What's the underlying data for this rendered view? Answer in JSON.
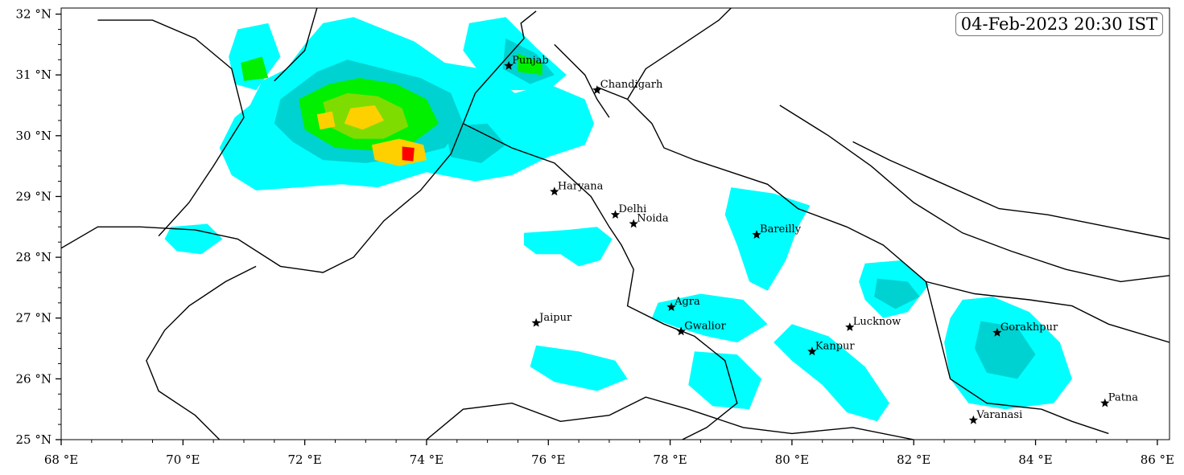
{
  "timestamp": "04-Feb-2023 20:30 IST",
  "colors": {
    "light": "#00ffff",
    "medium": "#00d2d2",
    "heavy": "#00f000",
    "mid": "#7fdc00",
    "very_heavy": "#ffd000",
    "extreme": "#ff0000",
    "border": "#000000"
  },
  "axes": {
    "x_ticks": [
      {
        "value": 68,
        "label": "68 °E"
      },
      {
        "value": 70,
        "label": "70 °E"
      },
      {
        "value": 72,
        "label": "72 °E"
      },
      {
        "value": 74,
        "label": "74 °E"
      },
      {
        "value": 76,
        "label": "76 °E"
      },
      {
        "value": 78,
        "label": "78 °E"
      },
      {
        "value": 80,
        "label": "80 °E"
      },
      {
        "value": 82,
        "label": "82 °E"
      },
      {
        "value": 84,
        "label": "84 °E"
      },
      {
        "value": 86,
        "label": "86 °E"
      }
    ],
    "y_ticks": [
      {
        "value": 25,
        "label": "25 °N"
      },
      {
        "value": 26,
        "label": "26 °N"
      },
      {
        "value": 27,
        "label": "27 °N"
      },
      {
        "value": 28,
        "label": "28 °N"
      },
      {
        "value": 29,
        "label": "29 °N"
      },
      {
        "value": 30,
        "label": "30 °N"
      },
      {
        "value": 31,
        "label": "31 °N"
      },
      {
        "value": 32,
        "label": "32 °N"
      }
    ],
    "lon_range": [
      68,
      86.2
    ],
    "lat_range": [
      25,
      32.1
    ]
  },
  "cities": [
    {
      "name": "Punjab",
      "lon": 75.35,
      "lat": 31.15
    },
    {
      "name": "Chandigarh",
      "lon": 76.8,
      "lat": 30.75
    },
    {
      "name": "Haryana",
      "lon": 76.1,
      "lat": 29.08
    },
    {
      "name": "Delhi",
      "lon": 77.1,
      "lat": 28.7
    },
    {
      "name": "Noida",
      "lon": 77.4,
      "lat": 28.55
    },
    {
      "name": "Bareilly",
      "lon": 79.42,
      "lat": 28.37
    },
    {
      "name": "Agra",
      "lon": 78.02,
      "lat": 27.18
    },
    {
      "name": "Jaipur",
      "lon": 75.8,
      "lat": 26.92
    },
    {
      "name": "Gwalior",
      "lon": 78.18,
      "lat": 26.78
    },
    {
      "name": "Lucknow",
      "lon": 80.95,
      "lat": 26.85
    },
    {
      "name": "Kanpur",
      "lon": 80.33,
      "lat": 26.45
    },
    {
      "name": "Gorakhpur",
      "lon": 83.37,
      "lat": 26.76
    },
    {
      "name": "Patna",
      "lon": 85.14,
      "lat": 25.6
    },
    {
      "name": "Varanasi",
      "lon": 82.98,
      "lat": 25.32
    }
  ],
  "rain_areas": [
    {
      "level": "light",
      "pts": [
        [
          70.9,
          31.75
        ],
        [
          71.4,
          31.85
        ],
        [
          71.6,
          31.3
        ],
        [
          71.2,
          30.75
        ],
        [
          70.85,
          30.85
        ],
        [
          70.75,
          31.3
        ]
      ]
    },
    {
      "level": "light",
      "pts": [
        [
          71.3,
          30.9
        ],
        [
          71.7,
          31.1
        ],
        [
          72.0,
          31.5
        ],
        [
          72.3,
          31.85
        ],
        [
          72.8,
          31.95
        ],
        [
          73.3,
          31.75
        ],
        [
          73.8,
          31.55
        ],
        [
          74.3,
          31.2
        ],
        [
          74.9,
          31.1
        ],
        [
          75.2,
          30.9
        ],
        [
          75.45,
          30.7
        ],
        [
          76.0,
          30.85
        ],
        [
          76.6,
          30.6
        ],
        [
          76.75,
          30.2
        ],
        [
          76.6,
          29.85
        ],
        [
          76.0,
          29.65
        ],
        [
          75.4,
          29.35
        ],
        [
          74.8,
          29.25
        ],
        [
          74.0,
          29.4
        ],
        [
          73.2,
          29.15
        ],
        [
          72.6,
          29.2
        ],
        [
          71.9,
          29.15
        ],
        [
          71.2,
          29.1
        ],
        [
          70.8,
          29.35
        ],
        [
          70.6,
          29.8
        ],
        [
          70.85,
          30.3
        ],
        [
          71.1,
          30.5
        ]
      ]
    },
    {
      "level": "light",
      "pts": [
        [
          74.7,
          31.85
        ],
        [
          75.3,
          31.95
        ],
        [
          75.8,
          31.45
        ],
        [
          76.3,
          31.0
        ],
        [
          76.0,
          30.75
        ],
        [
          75.4,
          30.75
        ],
        [
          74.9,
          31.0
        ],
        [
          74.6,
          31.4
        ]
      ]
    },
    {
      "level": "light",
      "pts": [
        [
          69.8,
          28.5
        ],
        [
          70.4,
          28.55
        ],
        [
          70.65,
          28.3
        ],
        [
          70.3,
          28.05
        ],
        [
          69.9,
          28.1
        ],
        [
          69.7,
          28.3
        ]
      ]
    },
    {
      "level": "light",
      "pts": [
        [
          75.6,
          28.4
        ],
        [
          76.3,
          28.45
        ],
        [
          76.8,
          28.5
        ],
        [
          77.05,
          28.3
        ],
        [
          76.85,
          27.95
        ],
        [
          76.5,
          27.85
        ],
        [
          76.2,
          28.05
        ],
        [
          75.8,
          28.05
        ],
        [
          75.6,
          28.2
        ]
      ]
    },
    {
      "level": "light",
      "pts": [
        [
          79.0,
          29.15
        ],
        [
          79.7,
          29.05
        ],
        [
          80.3,
          28.85
        ],
        [
          80.1,
          28.5
        ],
        [
          79.9,
          27.95
        ],
        [
          79.6,
          27.45
        ],
        [
          79.3,
          27.6
        ],
        [
          79.1,
          28.2
        ],
        [
          78.9,
          28.7
        ]
      ]
    },
    {
      "level": "light",
      "pts": [
        [
          81.2,
          27.9
        ],
        [
          81.8,
          27.95
        ],
        [
          82.25,
          27.55
        ],
        [
          81.9,
          27.1
        ],
        [
          81.5,
          27.0
        ],
        [
          81.2,
          27.3
        ],
        [
          81.1,
          27.6
        ]
      ]
    },
    {
      "level": "light",
      "pts": [
        [
          80.0,
          26.9
        ],
        [
          80.6,
          26.7
        ],
        [
          81.2,
          26.2
        ],
        [
          81.6,
          25.6
        ],
        [
          81.4,
          25.3
        ],
        [
          80.9,
          25.45
        ],
        [
          80.5,
          25.9
        ],
        [
          80.0,
          26.3
        ],
        [
          79.7,
          26.6
        ]
      ]
    },
    {
      "level": "light",
      "pts": [
        [
          82.8,
          27.3
        ],
        [
          83.3,
          27.35
        ],
        [
          83.9,
          27.1
        ],
        [
          84.4,
          26.6
        ],
        [
          84.6,
          26.0
        ],
        [
          84.3,
          25.6
        ],
        [
          83.5,
          25.5
        ],
        [
          82.9,
          25.6
        ],
        [
          82.6,
          26.0
        ],
        [
          82.5,
          26.6
        ],
        [
          82.6,
          27.0
        ]
      ]
    },
    {
      "level": "light",
      "pts": [
        [
          78.5,
          27.4
        ],
        [
          79.2,
          27.3
        ],
        [
          79.6,
          26.9
        ],
        [
          79.1,
          26.6
        ],
        [
          78.6,
          26.7
        ],
        [
          78.1,
          26.85
        ],
        [
          77.7,
          27.0
        ],
        [
          77.8,
          27.25
        ]
      ]
    },
    {
      "level": "light",
      "pts": [
        [
          75.8,
          26.55
        ],
        [
          76.5,
          26.45
        ],
        [
          77.1,
          26.3
        ],
        [
          77.3,
          26.0
        ],
        [
          76.8,
          25.8
        ],
        [
          76.1,
          25.95
        ],
        [
          75.7,
          26.2
        ]
      ]
    },
    {
      "level": "light",
      "pts": [
        [
          78.4,
          26.45
        ],
        [
          79.1,
          26.4
        ],
        [
          79.5,
          26.0
        ],
        [
          79.3,
          25.5
        ],
        [
          78.7,
          25.55
        ],
        [
          78.3,
          25.9
        ]
      ]
    },
    {
      "level": "medium",
      "pts": [
        [
          71.6,
          30.6
        ],
        [
          72.2,
          31.05
        ],
        [
          72.7,
          31.25
        ],
        [
          73.3,
          31.1
        ],
        [
          73.9,
          30.95
        ],
        [
          74.4,
          30.7
        ],
        [
          74.6,
          30.2
        ],
        [
          74.3,
          29.8
        ],
        [
          73.7,
          29.65
        ],
        [
          73.0,
          29.55
        ],
        [
          72.3,
          29.6
        ],
        [
          71.8,
          29.9
        ],
        [
          71.5,
          30.2
        ]
      ]
    },
    {
      "level": "medium",
      "pts": [
        [
          75.3,
          31.6
        ],
        [
          75.8,
          31.35
        ],
        [
          76.1,
          31.0
        ],
        [
          75.7,
          30.85
        ],
        [
          75.25,
          31.1
        ]
      ]
    },
    {
      "level": "medium",
      "pts": [
        [
          81.4,
          27.65
        ],
        [
          81.9,
          27.6
        ],
        [
          82.1,
          27.35
        ],
        [
          81.7,
          27.15
        ],
        [
          81.35,
          27.35
        ]
      ]
    },
    {
      "level": "medium",
      "pts": [
        [
          83.1,
          26.95
        ],
        [
          83.7,
          26.85
        ],
        [
          84.0,
          26.4
        ],
        [
          83.7,
          26.0
        ],
        [
          83.2,
          26.1
        ],
        [
          83.0,
          26.5
        ]
      ]
    },
    {
      "level": "medium",
      "pts": [
        [
          74.3,
          30.15
        ],
        [
          75.0,
          30.2
        ],
        [
          75.3,
          29.85
        ],
        [
          74.9,
          29.55
        ],
        [
          74.4,
          29.65
        ]
      ]
    },
    {
      "level": "heavy",
      "pts": [
        [
          71.9,
          30.6
        ],
        [
          72.4,
          30.85
        ],
        [
          72.9,
          30.95
        ],
        [
          73.5,
          30.85
        ],
        [
          74.0,
          30.6
        ],
        [
          74.2,
          30.2
        ],
        [
          73.8,
          29.9
        ],
        [
          73.2,
          29.75
        ],
        [
          72.5,
          29.8
        ],
        [
          72.0,
          30.1
        ]
      ]
    },
    {
      "level": "heavy",
      "pts": [
        [
          70.95,
          31.2
        ],
        [
          71.3,
          31.3
        ],
        [
          71.4,
          30.95
        ],
        [
          71.0,
          30.9
        ]
      ]
    },
    {
      "level": "heavy",
      "pts": [
        [
          75.5,
          31.35
        ],
        [
          75.9,
          31.2
        ],
        [
          75.9,
          31.0
        ],
        [
          75.5,
          31.05
        ]
      ]
    },
    {
      "level": "mid",
      "pts": [
        [
          72.3,
          30.55
        ],
        [
          72.7,
          30.7
        ],
        [
          73.2,
          30.65
        ],
        [
          73.6,
          30.45
        ],
        [
          73.7,
          30.15
        ],
        [
          73.3,
          29.95
        ],
        [
          72.8,
          29.95
        ],
        [
          72.4,
          30.15
        ]
      ]
    },
    {
      "level": "very_heavy",
      "pts": [
        [
          72.75,
          30.45
        ],
        [
          73.15,
          30.5
        ],
        [
          73.3,
          30.25
        ],
        [
          72.95,
          30.1
        ],
        [
          72.65,
          30.2
        ]
      ]
    },
    {
      "level": "very_heavy",
      "pts": [
        [
          72.2,
          30.35
        ],
        [
          72.45,
          30.4
        ],
        [
          72.5,
          30.15
        ],
        [
          72.25,
          30.1
        ]
      ]
    },
    {
      "level": "very_heavy",
      "pts": [
        [
          73.1,
          29.85
        ],
        [
          73.55,
          29.95
        ],
        [
          73.95,
          29.85
        ],
        [
          74.0,
          29.6
        ],
        [
          73.55,
          29.5
        ],
        [
          73.15,
          29.6
        ]
      ]
    },
    {
      "level": "extreme",
      "pts": [
        [
          73.6,
          29.82
        ],
        [
          73.8,
          29.8
        ],
        [
          73.78,
          29.58
        ],
        [
          73.6,
          29.6
        ]
      ]
    }
  ],
  "boundaries": [
    [
      [
        68.0,
        28.15
      ],
      [
        68.6,
        28.5
      ],
      [
        69.3,
        28.5
      ],
      [
        70.2,
        28.45
      ],
      [
        70.9,
        28.3
      ],
      [
        71.6,
        27.85
      ],
      [
        72.3,
        27.75
      ],
      [
        72.8,
        28.0
      ],
      [
        73.3,
        28.6
      ],
      [
        73.9,
        29.1
      ],
      [
        74.4,
        29.7
      ],
      [
        74.6,
        30.2
      ],
      [
        74.8,
        30.7
      ],
      [
        75.2,
        31.15
      ],
      [
        75.6,
        31.6
      ],
      [
        75.55,
        31.85
      ],
      [
        75.8,
        32.05
      ]
    ],
    [
      [
        68.6,
        31.9
      ],
      [
        69.5,
        31.9
      ],
      [
        70.2,
        31.6
      ],
      [
        70.8,
        31.1
      ],
      [
        71.0,
        30.3
      ],
      [
        70.5,
        29.5
      ],
      [
        70.1,
        28.9
      ],
      [
        69.6,
        28.35
      ]
    ],
    [
      [
        70.6,
        25.0
      ],
      [
        70.2,
        25.4
      ],
      [
        69.6,
        25.8
      ],
      [
        69.4,
        26.3
      ],
      [
        69.7,
        26.8
      ],
      [
        70.1,
        27.2
      ],
      [
        70.7,
        27.6
      ],
      [
        71.2,
        27.85
      ]
    ],
    [
      [
        74.6,
        30.2
      ],
      [
        75.4,
        29.8
      ],
      [
        76.1,
        29.55
      ],
      [
        76.7,
        29.0
      ],
      [
        77.0,
        28.5
      ],
      [
        77.2,
        28.2
      ],
      [
        77.4,
        27.8
      ],
      [
        77.3,
        27.2
      ],
      [
        77.9,
        26.9
      ],
      [
        78.4,
        26.7
      ],
      [
        78.9,
        26.3
      ],
      [
        79.1,
        25.6
      ],
      [
        78.6,
        25.2
      ],
      [
        78.2,
        25.0
      ]
    ],
    [
      [
        76.8,
        30.8
      ],
      [
        77.3,
        30.6
      ],
      [
        77.7,
        30.2
      ],
      [
        77.9,
        29.8
      ],
      [
        78.4,
        29.6
      ],
      [
        79.0,
        29.4
      ],
      [
        79.6,
        29.2
      ],
      [
        80.1,
        28.8
      ],
      [
        80.9,
        28.5
      ],
      [
        81.5,
        28.2
      ],
      [
        82.2,
        27.6
      ],
      [
        83.0,
        27.4
      ],
      [
        83.9,
        27.3
      ],
      [
        84.6,
        27.2
      ],
      [
        85.2,
        26.9
      ],
      [
        86.2,
        26.6
      ]
    ],
    [
      [
        77.3,
        30.6
      ],
      [
        77.6,
        31.1
      ],
      [
        78.2,
        31.5
      ],
      [
        78.8,
        31.9
      ],
      [
        79.0,
        32.1
      ]
    ],
    [
      [
        82.2,
        27.6
      ],
      [
        82.4,
        26.8
      ],
      [
        82.6,
        26.0
      ],
      [
        83.2,
        25.6
      ],
      [
        84.1,
        25.5
      ],
      [
        84.6,
        25.3
      ],
      [
        85.2,
        25.1
      ]
    ],
    [
      [
        79.8,
        30.5
      ],
      [
        80.6,
        30.0
      ],
      [
        81.3,
        29.5
      ],
      [
        82.0,
        28.9
      ],
      [
        82.8,
        28.4
      ],
      [
        83.6,
        28.1
      ],
      [
        84.5,
        27.8
      ],
      [
        85.4,
        27.6
      ],
      [
        86.2,
        27.7
      ]
    ],
    [
      [
        81.0,
        29.9
      ],
      [
        81.6,
        29.6
      ],
      [
        82.5,
        29.2
      ],
      [
        83.4,
        28.8
      ],
      [
        84.2,
        28.7
      ],
      [
        85.2,
        28.5
      ],
      [
        86.2,
        28.3
      ]
    ],
    [
      [
        76.1,
        31.5
      ],
      [
        76.6,
        31.0
      ],
      [
        76.8,
        30.6
      ],
      [
        77.0,
        30.3
      ]
    ],
    [
      [
        72.2,
        32.1
      ],
      [
        72.0,
        31.4
      ],
      [
        71.5,
        30.9
      ]
    ],
    [
      [
        74.0,
        25.0
      ],
      [
        74.6,
        25.5
      ],
      [
        75.4,
        25.6
      ],
      [
        76.2,
        25.3
      ],
      [
        77.0,
        25.4
      ],
      [
        77.6,
        25.7
      ],
      [
        78.3,
        25.5
      ],
      [
        79.2,
        25.2
      ],
      [
        80.0,
        25.1
      ],
      [
        81.0,
        25.2
      ],
      [
        82.0,
        25.0
      ]
    ]
  ]
}
